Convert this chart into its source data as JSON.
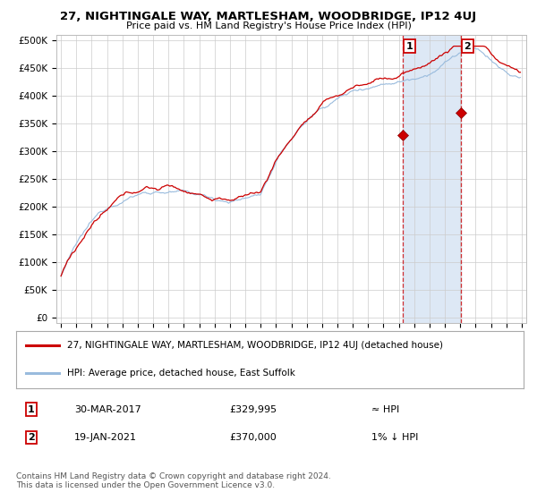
{
  "title": "27, NIGHTINGALE WAY, MARTLESHAM, WOODBRIDGE, IP12 4UJ",
  "subtitle": "Price paid vs. HM Land Registry's House Price Index (HPI)",
  "ylabel_ticks": [
    "£0",
    "£50K",
    "£100K",
    "£150K",
    "£200K",
    "£250K",
    "£300K",
    "£350K",
    "£400K",
    "£450K",
    "£500K"
  ],
  "ytick_values": [
    0,
    50000,
    100000,
    150000,
    200000,
    250000,
    300000,
    350000,
    400000,
    450000,
    500000
  ],
  "ylim": [
    -10000,
    510000
  ],
  "bg_color": "#ffffff",
  "plot_bg_color": "#ffffff",
  "grid_color": "#cccccc",
  "line1_color": "#cc0000",
  "line2_color": "#99bbdd",
  "shade_color": "#dde8f5",
  "sale1_year": 2017.25,
  "sale1_value": 329995,
  "sale2_year": 2021.05,
  "sale2_value": 370000,
  "legend_line1": "27, NIGHTINGALE WAY, MARTLESHAM, WOODBRIDGE, IP12 4UJ (detached house)",
  "legend_line2": "HPI: Average price, detached house, East Suffolk",
  "table_row1_date": "30-MAR-2017",
  "table_row1_price": "£329,995",
  "table_row1_hpi": "≈ HPI",
  "table_row2_date": "19-JAN-2021",
  "table_row2_price": "£370,000",
  "table_row2_hpi": "1% ↓ HPI",
  "footer": "Contains HM Land Registry data © Crown copyright and database right 2024.\nThis data is licensed under the Open Government Licence v3.0."
}
